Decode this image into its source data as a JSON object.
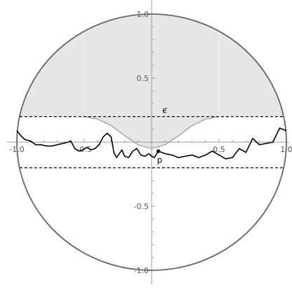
{
  "chart_data": {
    "type": "diagram",
    "x_ticks": [
      {
        "value": -1.0,
        "label": "-1.0"
      },
      {
        "value": -0.5,
        "label": "-0.5"
      },
      {
        "value": 0.5,
        "label": "0.5"
      },
      {
        "value": 1.0,
        "label": "1.0"
      }
    ],
    "y_ticks": [
      {
        "value": 1.0,
        "label": "1.0"
      },
      {
        "value": 0.5,
        "label": "0.5"
      },
      {
        "value": -0.5,
        "label": "-0.5"
      },
      {
        "value": -1.0,
        "label": "-1.0"
      }
    ],
    "xlim": [
      -1.05,
      1.05
    ],
    "ylim": [
      -1.02,
      1.05
    ],
    "circle_radius": 1.0,
    "epsilon_level": 0.2,
    "epsilon_label": "ϵ",
    "point_label": "p",
    "point": [
      0.05,
      -0.07
    ],
    "shaded_region_boundary": {
      "flat_y": 0.2,
      "bump_x": [
        -0.5,
        -0.4,
        -0.3,
        -0.2,
        -0.1,
        0.0,
        0.1,
        0.2,
        0.3,
        0.4,
        0.5
      ],
      "bump_y": [
        0.2,
        0.18,
        0.13,
        0.05,
        -0.02,
        -0.05,
        -0.02,
        0.05,
        0.13,
        0.18,
        0.2
      ]
    },
    "curve": {
      "x": [
        -1.0,
        -0.97,
        -0.94,
        -0.9,
        -0.86,
        -0.82,
        -0.78,
        -0.74,
        -0.7,
        -0.66,
        -0.62,
        -0.6,
        -0.57,
        -0.54,
        -0.51,
        -0.48,
        -0.45,
        -0.42,
        -0.39,
        -0.36,
        -0.33,
        -0.3,
        -0.28,
        -0.26,
        -0.24,
        -0.22,
        -0.2,
        -0.17,
        -0.14,
        -0.11,
        -0.08,
        -0.05,
        -0.02,
        0.0,
        0.02,
        0.05,
        0.1,
        0.15,
        0.2,
        0.25,
        0.3,
        0.35,
        0.4,
        0.45,
        0.5,
        0.55,
        0.6,
        0.65,
        0.7,
        0.75,
        0.8,
        0.85,
        0.9,
        0.95,
        1.0
      ],
      "y": [
        0.09,
        0.05,
        0.02,
        0.01,
        -0.02,
        -0.02,
        -0.03,
        -0.03,
        -0.02,
        -0.01,
        0.0,
        0.01,
        -0.05,
        -0.07,
        -0.06,
        -0.04,
        -0.06,
        -0.05,
        -0.02,
        0.04,
        0.07,
        0.04,
        -0.08,
        -0.12,
        -0.09,
        -0.06,
        -0.11,
        -0.12,
        -0.07,
        -0.05,
        -0.1,
        -0.11,
        -0.09,
        -0.11,
        -0.12,
        -0.07,
        -0.09,
        -0.1,
        -0.12,
        -0.11,
        -0.1,
        -0.12,
        -0.1,
        -0.07,
        -0.1,
        -0.13,
        -0.12,
        -0.05,
        -0.08,
        0.03,
        -0.02,
        -0.01,
        0.0,
        0.11,
        0.09
      ]
    }
  }
}
